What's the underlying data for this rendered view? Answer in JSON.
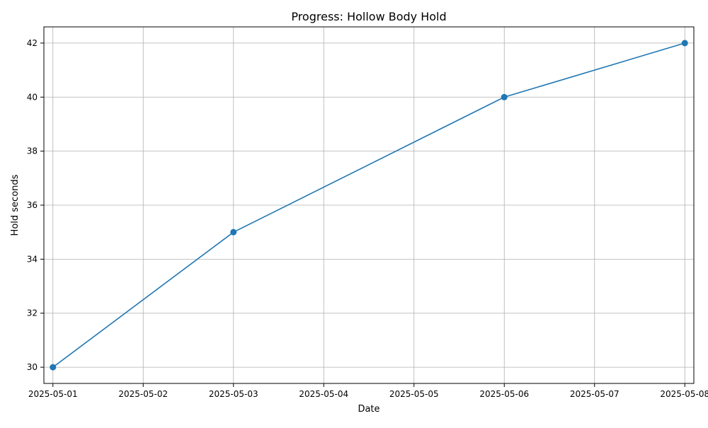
{
  "chart_data": {
    "type": "line",
    "title": "Progress: Hollow Body Hold",
    "xlabel": "Date",
    "ylabel": "Hold seconds",
    "x": [
      "2025-05-01",
      "2025-05-03",
      "2025-05-06",
      "2025-05-08"
    ],
    "series": [
      {
        "values": [
          30,
          35,
          40,
          42
        ]
      }
    ],
    "x_ticks": [
      "2025-05-01",
      "2025-05-02",
      "2025-05-03",
      "2025-05-04",
      "2025-05-05",
      "2025-05-06",
      "2025-05-07",
      "2025-05-08"
    ],
    "y_ticks": [
      30,
      32,
      34,
      36,
      38,
      40,
      42
    ],
    "xlim": [
      "2025-04-30T21:36",
      "2025-05-08T02:24"
    ],
    "ylim": [
      29.4,
      42.6
    ],
    "grid": true,
    "line_color": "#1f77b4",
    "grid_color": "#b0b0b0",
    "marker": "circle"
  }
}
